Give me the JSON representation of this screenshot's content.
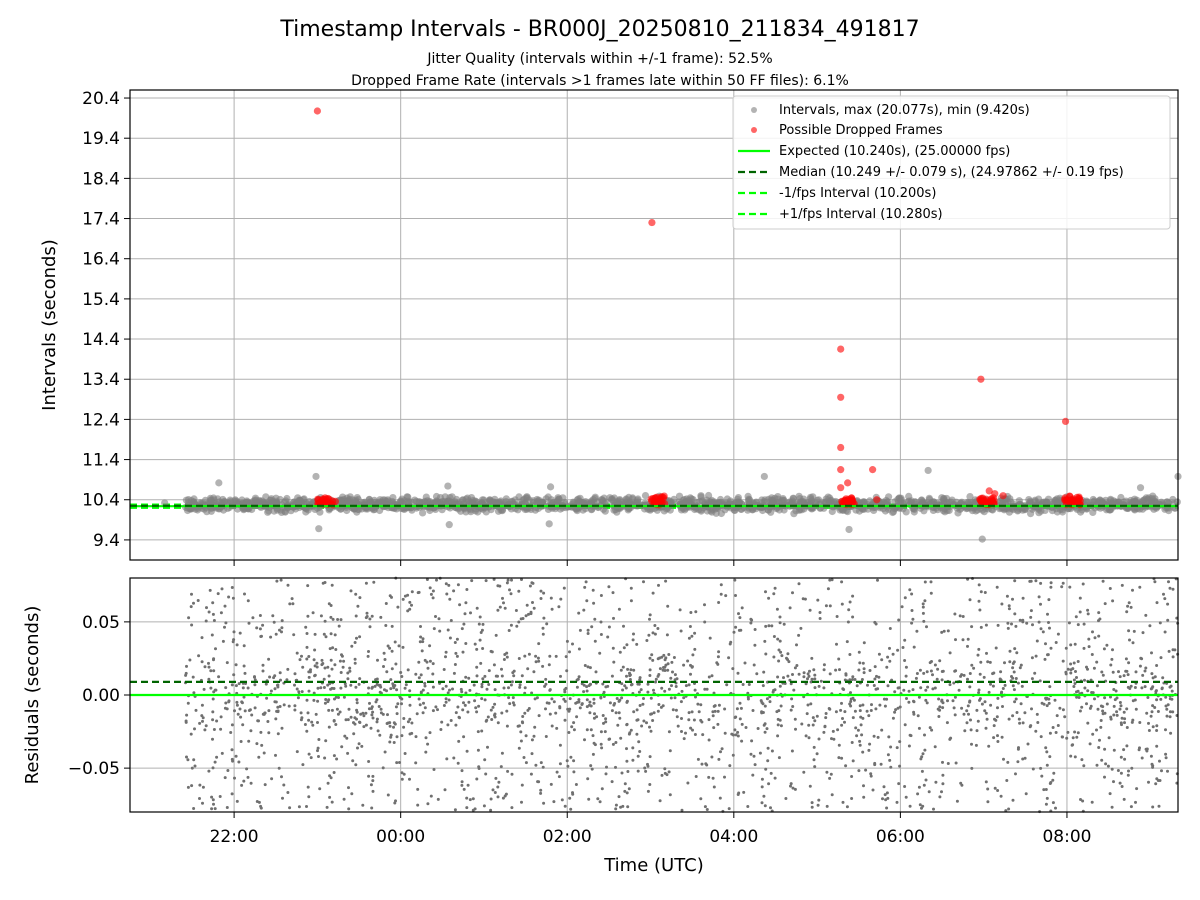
{
  "chart_data": [
    {
      "type": "scatter",
      "title": "Timestamp Intervals - BR000J_20250810_211834_491817",
      "subtitle_lines": [
        "Jitter Quality (intervals within +/-1 frame): 52.5%",
        "Dropped Frame Rate (intervals >1 frames late within 50 FF files): 6.1%"
      ],
      "xlabel": "",
      "ylabel": "Intervals (seconds)",
      "x_unit": "time (UTC)",
      "xlim": [
        "2025-08-10 20:45",
        "2025-08-11 09:20"
      ],
      "ylim": [
        8.9,
        20.6
      ],
      "yticks": [
        9.4,
        10.4,
        11.4,
        12.4,
        13.4,
        14.4,
        15.4,
        16.4,
        17.4,
        18.4,
        19.4,
        20.4
      ],
      "grid": true,
      "legend_position": "top-right",
      "legend": [
        "Intervals, max (20.077s), min (9.420s)",
        "Possible Dropped Frames",
        "Expected (10.240s), (25.00000 fps)",
        "Median (10.249 +/- 0.079 s), (24.97862 +/- 0.19 fps)",
        "-1/fps Interval (10.200s)",
        "+1/fps Interval (10.280s)"
      ],
      "reference_lines": {
        "expected": 10.24,
        "median": 10.249,
        "minus_one_fps": 10.2,
        "plus_one_fps": 10.28
      },
      "series": [
        {
          "name": "Intervals, max (20.077s), min (9.420s)",
          "color": "#808080",
          "note_points": [
            [
              "2025-08-10 21:10",
              10.32
            ],
            [
              "2025-08-10 21:49",
              10.82
            ],
            [
              "2025-08-10 22:59",
              10.98
            ],
            [
              "2025-08-10 23:01",
              9.68
            ],
            [
              "2025-08-11 00:34",
              10.74
            ],
            [
              "2025-08-11 00:35",
              9.78
            ],
            [
              "2025-08-11 01:48",
              10.72
            ],
            [
              "2025-08-11 01:47",
              9.8
            ],
            [
              "2025-08-11 04:22",
              10.98
            ],
            [
              "2025-08-11 05:23",
              9.66
            ],
            [
              "2025-08-11 06:20",
              11.13
            ],
            [
              "2025-08-11 06:59",
              9.42
            ],
            [
              "2025-08-11 08:53",
              10.7
            ],
            [
              "2025-08-11 09:20",
              10.98
            ]
          ],
          "y_range": [
            10.0,
            10.6
          ],
          "x_extent": [
            "2025-08-10 21:25",
            "2025-08-11 09:20"
          ]
        },
        {
          "name": "Possible Dropped Frames",
          "color": "#ff0000",
          "points": [
            [
              "2025-08-10 23:00",
              20.077
            ],
            [
              "2025-08-11 03:01",
              17.3
            ],
            [
              "2025-08-11 05:17",
              14.15
            ],
            [
              "2025-08-11 05:17",
              12.95
            ],
            [
              "2025-08-11 05:17",
              11.7
            ],
            [
              "2025-08-11 05:17",
              11.15
            ],
            [
              "2025-08-11 05:17",
              10.7
            ],
            [
              "2025-08-11 05:22",
              10.82
            ],
            [
              "2025-08-11 05:40",
              11.15
            ],
            [
              "2025-08-11 05:43",
              10.4
            ],
            [
              "2025-08-11 06:58",
              13.4
            ],
            [
              "2025-08-11 07:04",
              10.62
            ],
            [
              "2025-08-11 07:08",
              10.55
            ],
            [
              "2025-08-11 07:14",
              10.5
            ],
            [
              "2025-08-11 07:59",
              12.35
            ],
            [
              "2025-08-11 08:02",
              10.48
            ]
          ],
          "clusters": [
            {
              "start": "2025-08-10 23:00",
              "end": "2025-08-10 23:13",
              "y": [
                10.27,
                10.45
              ]
            },
            {
              "start": "2025-08-11 03:00",
              "end": "2025-08-11 03:12",
              "y": [
                10.27,
                10.5
              ]
            },
            {
              "start": "2025-08-11 05:15",
              "end": "2025-08-11 05:27",
              "y": [
                10.27,
                10.45
              ]
            },
            {
              "start": "2025-08-11 06:57",
              "end": "2025-08-11 07:08",
              "y": [
                10.27,
                10.45
              ]
            },
            {
              "start": "2025-08-11 07:58",
              "end": "2025-08-11 08:10",
              "y": [
                10.27,
                10.5
              ]
            }
          ]
        }
      ]
    },
    {
      "type": "scatter",
      "title": "",
      "xlabel": "Time (UTC)",
      "ylabel": "Residuals (seconds)",
      "xlim": [
        "2025-08-10 20:45",
        "2025-08-11 09:20"
      ],
      "ylim": [
        -0.08,
        0.08
      ],
      "yticks": [
        -0.05,
        0.0,
        0.05
      ],
      "ytick_labels": [
        "−0.05",
        "0.00",
        "0.05"
      ],
      "xticks": [
        "22:00",
        "00:00",
        "02:00",
        "04:00",
        "06:00",
        "08:00"
      ],
      "grid": true,
      "reference_lines": {
        "zero": 0.0,
        "median_offset": 0.009
      },
      "series": [
        {
          "color": "#808080",
          "x_extent": [
            "2025-08-10 21:25",
            "2025-08-11 09:20"
          ],
          "y_range": [
            -0.08,
            0.08
          ]
        }
      ]
    }
  ]
}
